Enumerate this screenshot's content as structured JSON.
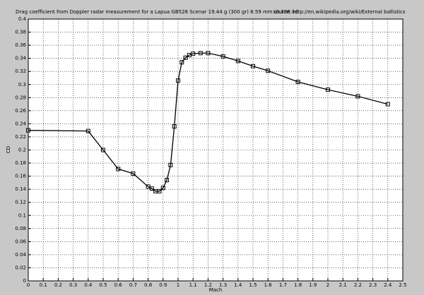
{
  "chart_data": {
    "type": "line",
    "title": "Drag coefficient from Doppler radar measurement for a Lapua GB528 Scenar 19.44 g (300 gr) 8.59 mm (0.338 in)",
    "source": "source: http://en.wikipedia.org/wiki/External ballistics",
    "x_label": "Mach",
    "y_label": "CD",
    "x": [
      0,
      0.4,
      0.5,
      0.6,
      0.7,
      0.8,
      0.825,
      0.85,
      0.875,
      0.9,
      0.925,
      0.95,
      0.975,
      1.0,
      1.025,
      1.05,
      1.075,
      1.1,
      1.15,
      1.2,
      1.3,
      1.4,
      1.5,
      1.6,
      1.8,
      2.0,
      2.2,
      2.4
    ],
    "values": [
      0.23,
      0.229,
      0.2,
      0.171,
      0.164,
      0.144,
      0.141,
      0.137,
      0.137,
      0.142,
      0.154,
      0.177,
      0.236,
      0.306,
      0.334,
      0.341,
      0.345,
      0.347,
      0.348,
      0.348,
      0.343,
      0.336,
      0.328,
      0.321,
      0.304,
      0.292,
      0.282,
      0.27
    ],
    "color": "#000000",
    "xlim": [
      0,
      2.5
    ],
    "ylim": [
      0,
      0.4
    ],
    "xticks": [
      0,
      0.1,
      0.2,
      0.3,
      0.4,
      0.5,
      0.6,
      0.7,
      0.8,
      0.9,
      1,
      1.1,
      1.2,
      1.3,
      1.4,
      1.5,
      1.6,
      1.7,
      1.8,
      1.9,
      2,
      2.1,
      2.2,
      2.3,
      2.4,
      2.5
    ],
    "yticks": [
      0,
      0.02,
      0.04,
      0.06,
      0.08,
      0.1,
      0.12,
      0.14,
      0.16,
      0.18,
      0.2,
      0.22,
      0.24,
      0.26,
      0.28,
      0.3,
      0.32,
      0.34,
      0.36,
      0.38,
      0.4
    ],
    "grid": true
  }
}
